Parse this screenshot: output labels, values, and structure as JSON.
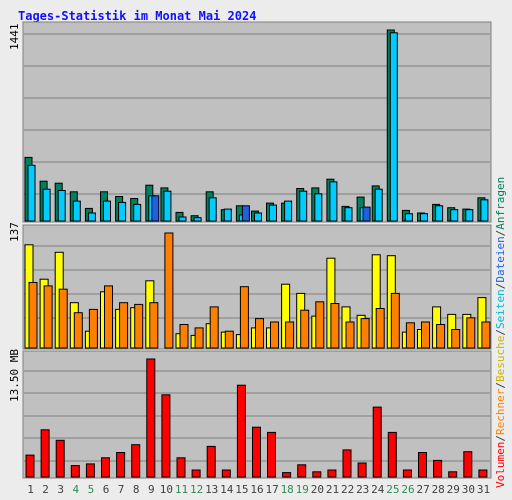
{
  "title": "Tages-Statistik im Monat Mai 2024",
  "colors": {
    "background": "#ececec",
    "frame": "#808080",
    "panel": "#c0c0c0",
    "grid": "#808080",
    "title": "#1010ff",
    "day_normal": "#404040",
    "day_weekend": "#2e8b57",
    "anfragen": "#00805c",
    "dateien": "#00ccff",
    "seiten": "#2060e0",
    "besuche": "#ffff00",
    "rechner": "#ff8000",
    "volumen": "#ff0000",
    "right_anfragen": "#00805c",
    "right_sep": "#404040",
    "right_dateien": "#2060e0",
    "right_seiten": "#00b8d8",
    "right_besuche": "#c8b400",
    "right_rechner": "#ff8000",
    "right_volumen": "#ff0000"
  },
  "axis_labels": {
    "top": "1441",
    "middle": "137",
    "bottom": "13.50 MB"
  },
  "right_labels": {
    "volumen": "Volumen",
    "sep1": "/",
    "rechner": "Rechner",
    "sep2": "/",
    "besuche": "Besuche",
    "sep3": "/",
    "seiten": "Seiten",
    "sep4": "/",
    "dateien": "Dateien",
    "sep5": "/",
    "anfragen": "Anfragen"
  },
  "chart_data": {
    "type": "bar",
    "title": "Tages-Statistik im Monat Mai 2024",
    "categories": [
      "1",
      "2",
      "3",
      "4",
      "5",
      "6",
      "7",
      "8",
      "9",
      "10",
      "11",
      "12",
      "13",
      "14",
      "15",
      "16",
      "17",
      "18",
      "19",
      "20",
      "21",
      "22",
      "23",
      "24",
      "25",
      "26",
      "27",
      "28",
      "29",
      "30",
      "31"
    ],
    "weekend_days": [
      "4",
      "5",
      "11",
      "12",
      "18",
      "19",
      "25",
      "26"
    ],
    "panels": {
      "top": {
        "max": 1441,
        "series": [
          {
            "name": "Anfragen",
            "values": [
              480,
              300,
              285,
              220,
              95,
              220,
              185,
              170,
              270,
              250,
              65,
              40,
              220,
              85,
              115,
              75,
              135,
              135,
              245,
              250,
              315,
              110,
              180,
              265,
              1441,
              80,
              60,
              125,
              100,
              90,
              175
            ]
          },
          {
            "name": "Dateien",
            "values": [
              420,
              240,
              230,
              150,
              60,
              150,
              140,
              125,
              190,
              225,
              30,
              25,
              175,
              90,
              45,
              60,
              120,
              150,
              225,
              205,
              295,
              100,
              100,
              240,
              1420,
              55,
              55,
              115,
              85,
              85,
              160
            ]
          },
          {
            "name": "Seiten",
            "values": [
              0,
              0,
              0,
              0,
              0,
              0,
              0,
              0,
              190,
              0,
              0,
              0,
              0,
              0,
              115,
              0,
              0,
              0,
              0,
              0,
              0,
              0,
              105,
              0,
              0,
              0,
              0,
              0,
              0,
              0,
              0
            ]
          }
        ]
      },
      "middle": {
        "max": 137,
        "series": [
          {
            "name": "Besuche",
            "values": [
              123,
              82,
              114,
              54,
              20,
              67,
              46,
              48,
              80,
              0,
              17,
              15,
              29,
              19,
              16,
              24,
              24,
              76,
              65,
              38,
              107,
              49,
              39,
              111,
              110,
              19,
              22,
              49,
              40,
              40,
              60
            ]
          },
          {
            "name": "Rechner",
            "values": [
              78,
              74,
              70,
              42,
              46,
              74,
              54,
              52,
              54,
              137,
              28,
              24,
              49,
              20,
              73,
              35,
              31,
              31,
              45,
              55,
              53,
              31,
              35,
              47,
              65,
              30,
              31,
              28,
              22,
              36,
              31
            ]
          }
        ]
      },
      "bottom": {
        "max": 13.5,
        "unit": "MB",
        "series": [
          {
            "name": "Volumen",
            "values": [
              2.5,
              5.4,
              4.2,
              1.3,
              1.5,
              2.2,
              2.8,
              3.7,
              13.5,
              9.4,
              2.2,
              0.8,
              3.5,
              0.8,
              10.5,
              5.7,
              5.1,
              0.5,
              1.4,
              0.6,
              0.8,
              3.1,
              1.6,
              8.0,
              5.1,
              0.8,
              2.8,
              1.9,
              0.6,
              2.9,
              0.8
            ]
          }
        ]
      }
    }
  }
}
